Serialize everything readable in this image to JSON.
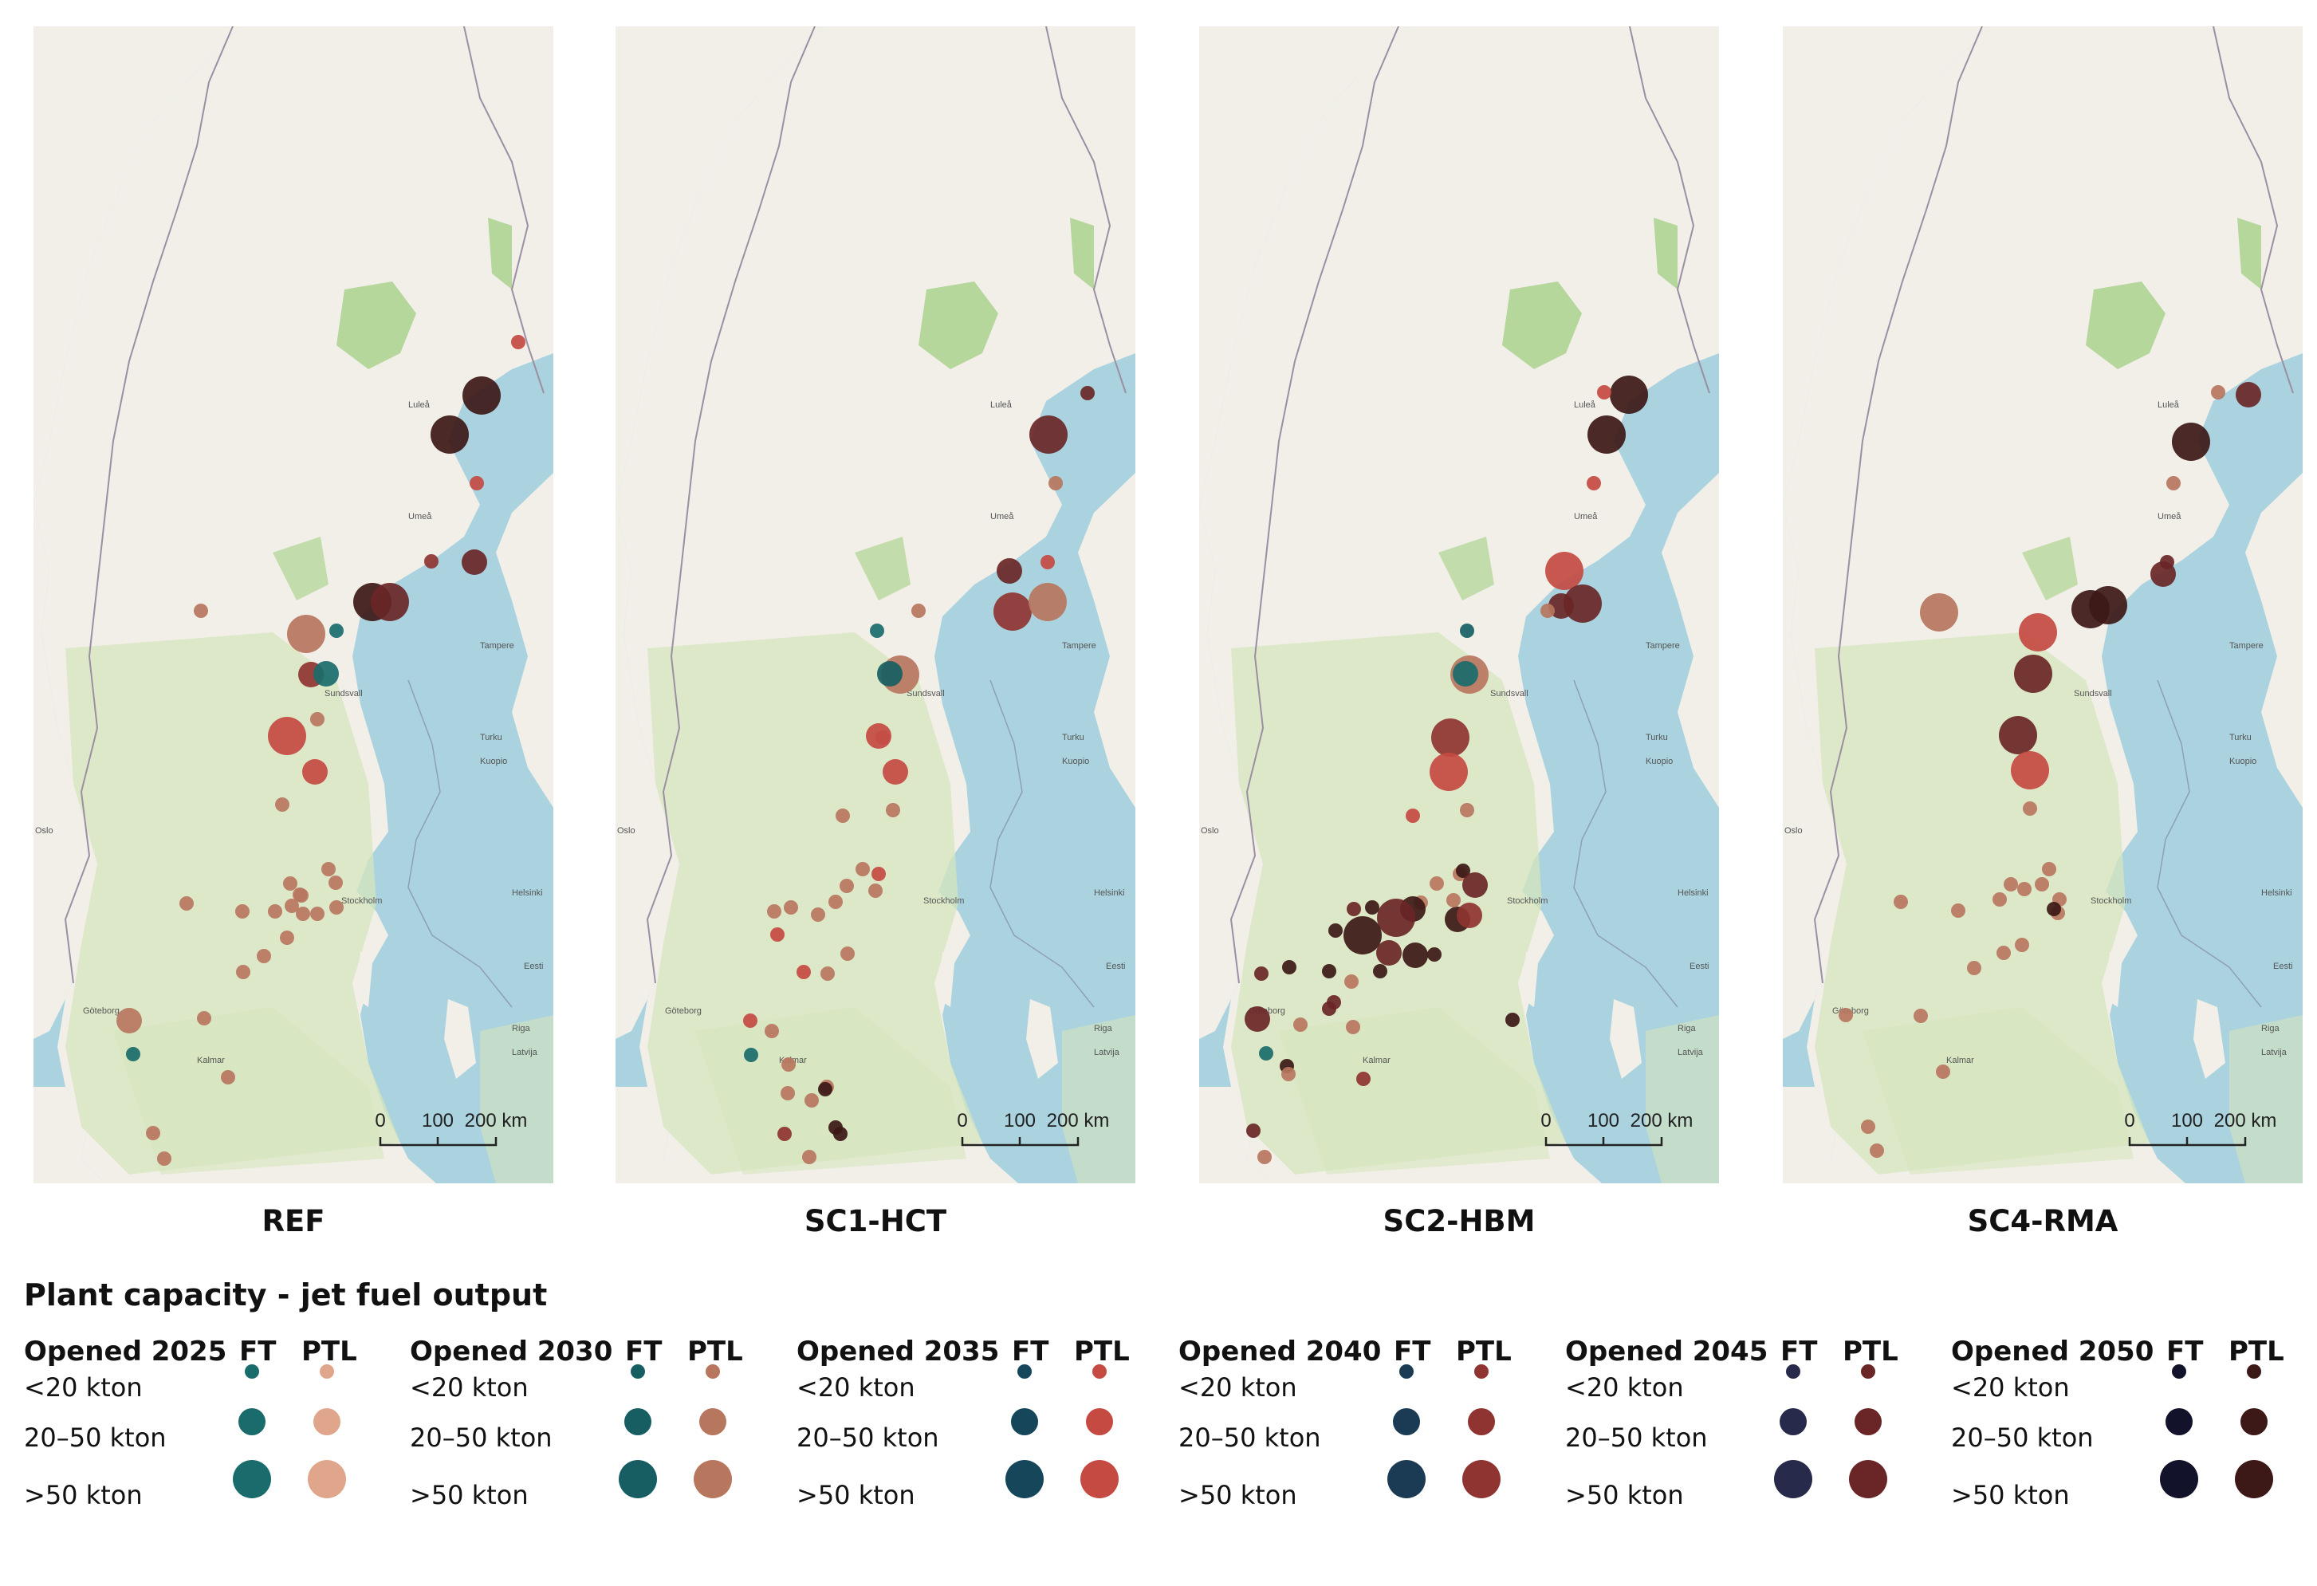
{
  "maps": [
    {
      "title": "REF",
      "plants": [
        [
          "ptl",
          2050,
          3,
          562,
          463
        ],
        [
          "ptl",
          2035,
          1,
          608,
          396
        ],
        [
          "ptl",
          2050,
          3,
          522,
          512
        ],
        [
          "ptl",
          2035,
          1,
          556,
          573
        ],
        [
          "ptl",
          2045,
          2,
          553,
          672
        ],
        [
          "ptl",
          2040,
          1,
          499,
          671
        ],
        [
          "ptl",
          2050,
          3,
          425,
          722
        ],
        [
          "ptl",
          2045,
          3,
          447,
          722
        ],
        [
          "ptl",
          2030,
          1,
          210,
          733
        ],
        [
          "ptl",
          2030,
          3,
          342,
          762
        ],
        [
          "ptl",
          2040,
          2,
          348,
          813
        ],
        [
          "ptl",
          2030,
          1,
          356,
          869
        ],
        [
          "ptl",
          2035,
          3,
          318,
          890
        ],
        [
          "ptl",
          2035,
          2,
          353,
          935
        ],
        [
          "ptl",
          2030,
          1,
          312,
          976
        ],
        [
          "ptl",
          2030,
          1,
          322,
          1075
        ],
        [
          "ptl",
          2030,
          1,
          336,
          1090
        ],
        [
          "ptl",
          2030,
          1,
          324,
          1103
        ],
        [
          "ptl",
          2030,
          1,
          338,
          1113
        ],
        [
          "ptl",
          2030,
          1,
          356,
          1113
        ],
        [
          "ptl",
          2030,
          1,
          380,
          1105
        ],
        [
          "ptl",
          2030,
          1,
          379,
          1074
        ],
        [
          "ptl",
          2030,
          1,
          370,
          1057
        ],
        [
          "ptl",
          2030,
          1,
          334,
          1089
        ],
        [
          "ptl",
          2030,
          1,
          303,
          1110
        ],
        [
          "ptl",
          2030,
          1,
          262,
          1110
        ],
        [
          "ptl",
          2030,
          1,
          192,
          1100
        ],
        [
          "ptl",
          2030,
          1,
          318,
          1143
        ],
        [
          "ptl",
          2030,
          1,
          289,
          1166
        ],
        [
          "ptl",
          2030,
          1,
          263,
          1186
        ],
        [
          "ptl",
          2030,
          1,
          214,
          1244
        ],
        [
          "ptl",
          2030,
          2,
          120,
          1247
        ],
        [
          "ptl",
          2030,
          1,
          244,
          1318
        ],
        [
          "ptl",
          2030,
          1,
          150,
          1388
        ],
        [
          "ptl",
          2030,
          1,
          164,
          1420
        ],
        [
          "ft",
          2025,
          2,
          367,
          812
        ],
        [
          "ft",
          2025,
          1,
          380,
          758
        ],
        [
          "ft",
          2025,
          1,
          125,
          1289
        ]
      ]
    },
    {
      "title": "SC1-HCT",
      "plants": [
        [
          "ptl",
          2045,
          3,
          543,
          512
        ],
        [
          "ptl",
          2045,
          1,
          592,
          460
        ],
        [
          "ptl",
          2030,
          1,
          552,
          573
        ],
        [
          "ptl",
          2035,
          1,
          542,
          672
        ],
        [
          "ptl",
          2045,
          2,
          494,
          683
        ],
        [
          "ptl",
          2040,
          3,
          498,
          734
        ],
        [
          "ptl",
          2030,
          3,
          542,
          722
        ],
        [
          "ptl",
          2030,
          1,
          380,
          733
        ],
        [
          "ptl",
          2030,
          3,
          357,
          813
        ],
        [
          "ptl",
          2030,
          1,
          335,
          892
        ],
        [
          "ptl",
          2035,
          2,
          330,
          890
        ],
        [
          "ptl",
          2035,
          2,
          351,
          935
        ],
        [
          "ptl",
          2030,
          1,
          348,
          983
        ],
        [
          "ptl",
          2030,
          1,
          285,
          990
        ],
        [
          "ptl",
          2030,
          1,
          310,
          1057
        ],
        [
          "ptl",
          2035,
          1,
          330,
          1063
        ],
        [
          "ptl",
          2030,
          1,
          326,
          1084
        ],
        [
          "ptl",
          2030,
          1,
          290,
          1078
        ],
        [
          "ptl",
          2030,
          1,
          276,
          1098
        ],
        [
          "ptl",
          2030,
          1,
          254,
          1114
        ],
        [
          "ptl",
          2030,
          1,
          199,
          1110
        ],
        [
          "ptl",
          2030,
          1,
          220,
          1105
        ],
        [
          "ptl",
          2035,
          1,
          203,
          1139
        ],
        [
          "ptl",
          2030,
          1,
          291,
          1163
        ],
        [
          "ptl",
          2030,
          1,
          266,
          1188
        ],
        [
          "ptl",
          2035,
          1,
          236,
          1186
        ],
        [
          "ptl",
          2035,
          1,
          169,
          1247
        ],
        [
          "ptl",
          2030,
          1,
          196,
          1260
        ],
        [
          "ptl",
          2030,
          1,
          217,
          1302
        ],
        [
          "ptl",
          2030,
          1,
          265,
          1330
        ],
        [
          "ptl",
          2030,
          1,
          216,
          1338
        ],
        [
          "ptl",
          2030,
          1,
          246,
          1347
        ],
        [
          "ptl",
          2040,
          1,
          212,
          1389
        ],
        [
          "ptl",
          2050,
          1,
          282,
          1389
        ],
        [
          "ptl",
          2030,
          1,
          243,
          1418
        ],
        [
          "ptl",
          2050,
          1,
          263,
          1333
        ],
        [
          "ptl",
          2050,
          1,
          276,
          1381
        ],
        [
          "ft",
          2030,
          2,
          344,
          812
        ],
        [
          "ft",
          2025,
          1,
          328,
          758
        ],
        [
          "ft",
          2025,
          1,
          170,
          1290
        ]
      ]
    },
    {
      "title": "SC2-HBM",
      "plants": [
        [
          "ptl",
          2050,
          3,
          539,
          462
        ],
        [
          "ptl",
          2035,
          1,
          508,
          459
        ],
        [
          "ptl",
          2050,
          3,
          511,
          512
        ],
        [
          "ptl",
          2035,
          1,
          495,
          573
        ],
        [
          "ptl",
          2035,
          3,
          458,
          683
        ],
        [
          "ptl",
          2045,
          3,
          481,
          724
        ],
        [
          "ptl",
          2045,
          2,
          454,
          727
        ],
        [
          "ptl",
          2030,
          1,
          437,
          733
        ],
        [
          "ptl",
          2030,
          3,
          339,
          813
        ],
        [
          "ptl",
          2040,
          3,
          315,
          892
        ],
        [
          "ptl",
          2035,
          3,
          313,
          935
        ],
        [
          "ptl",
          2030,
          1,
          336,
          983
        ],
        [
          "ptl",
          2035,
          1,
          268,
          990
        ],
        [
          "ptl",
          2030,
          1,
          327,
          1063
        ],
        [
          "ptl",
          2030,
          1,
          298,
          1075
        ],
        [
          "ptl",
          2030,
          1,
          278,
          1099
        ],
        [
          "ptl",
          2050,
          1,
          331,
          1059
        ],
        [
          "ptl",
          2045,
          2,
          346,
          1077
        ],
        [
          "ptl",
          2050,
          2,
          324,
          1120
        ],
        [
          "ptl",
          2030,
          1,
          319,
          1096
        ],
        [
          "ptl",
          2040,
          2,
          339,
          1115
        ],
        [
          "ptl",
          2050,
          2,
          268,
          1107
        ],
        [
          "ptl",
          2045,
          3,
          247,
          1118
        ],
        [
          "ptl",
          2045,
          1,
          194,
          1107
        ],
        [
          "ptl",
          2050,
          1,
          171,
          1134
        ],
        [
          "ptl",
          2050,
          1,
          217,
          1105
        ],
        [
          "ptl",
          2045,
          2,
          238,
          1162
        ],
        [
          "ptl",
          2050,
          2,
          271,
          1165
        ],
        [
          "ptl",
          2050,
          3,
          205,
          1140
        ],
        [
          "ptl",
          2050,
          1,
          113,
          1180
        ],
        [
          "ptl",
          2050,
          1,
          163,
          1185
        ],
        [
          "ptl",
          2050,
          1,
          227,
          1185
        ],
        [
          "ptl",
          2045,
          1,
          163,
          1232
        ],
        [
          "ptl",
          2050,
          1,
          295,
          1164
        ],
        [
          "ptl",
          2030,
          1,
          191,
          1198
        ],
        [
          "ptl",
          2045,
          1,
          169,
          1224
        ],
        [
          "ptl",
          2045,
          1,
          78,
          1188
        ],
        [
          "ptl",
          2045,
          2,
          73,
          1245
        ],
        [
          "ptl",
          2030,
          1,
          127,
          1252
        ],
        [
          "ptl",
          2030,
          1,
          193,
          1255
        ],
        [
          "ptl",
          2040,
          1,
          206,
          1320
        ],
        [
          "ptl",
          2050,
          1,
          110,
          1304
        ],
        [
          "ptl",
          2030,
          1,
          112,
          1314
        ],
        [
          "ptl",
          2050,
          1,
          393,
          1246
        ],
        [
          "ptl",
          2045,
          1,
          68,
          1385
        ],
        [
          "ptl",
          2030,
          1,
          82,
          1418
        ],
        [
          "ft",
          2025,
          2,
          334,
          812
        ],
        [
          "ft",
          2030,
          1,
          336,
          758
        ],
        [
          "ft",
          2025,
          1,
          84,
          1288
        ]
      ]
    },
    {
      "title": "SC4-RMA",
      "plants": [
        [
          "ptl",
          2045,
          2,
          584,
          462
        ],
        [
          "ptl",
          2030,
          1,
          546,
          459
        ],
        [
          "ptl",
          2050,
          3,
          512,
          521
        ],
        [
          "ptl",
          2030,
          1,
          490,
          573
        ],
        [
          "ptl",
          2045,
          1,
          482,
          672
        ],
        [
          "ptl",
          2045,
          2,
          477,
          687
        ],
        [
          "ptl",
          2050,
          3,
          408,
          726
        ],
        [
          "ptl",
          2050,
          3,
          386,
          731
        ],
        [
          "ptl",
          2030,
          3,
          196,
          735
        ],
        [
          "ptl",
          2035,
          3,
          320,
          760
        ],
        [
          "ptl",
          2045,
          3,
          314,
          812
        ],
        [
          "ptl",
          2045,
          3,
          295,
          889
        ],
        [
          "ptl",
          2035,
          3,
          310,
          933
        ],
        [
          "ptl",
          2030,
          1,
          310,
          981
        ],
        [
          "ptl",
          2030,
          1,
          334,
          1057
        ],
        [
          "ptl",
          2030,
          1,
          325,
          1076
        ],
        [
          "ptl",
          2030,
          1,
          286,
          1076
        ],
        [
          "ptl",
          2030,
          1,
          303,
          1082
        ],
        [
          "ptl",
          2030,
          1,
          272,
          1095
        ],
        [
          "ptl",
          2030,
          1,
          220,
          1109
        ],
        [
          "ptl",
          2030,
          1,
          148,
          1098
        ],
        [
          "ptl",
          2030,
          1,
          347,
          1095
        ],
        [
          "ptl",
          2030,
          1,
          345,
          1112
        ],
        [
          "ptl",
          2030,
          1,
          300,
          1152
        ],
        [
          "ptl",
          2030,
          1,
          277,
          1162
        ],
        [
          "ptl",
          2030,
          1,
          240,
          1181
        ],
        [
          "ptl",
          2030,
          1,
          173,
          1241
        ],
        [
          "ptl",
          2030,
          1,
          79,
          1240
        ],
        [
          "ptl",
          2030,
          1,
          201,
          1311
        ],
        [
          "ptl",
          2030,
          1,
          107,
          1380
        ],
        [
          "ptl",
          2030,
          1,
          118,
          1410
        ],
        [
          "ptl",
          2050,
          1,
          340,
          1107
        ]
      ]
    }
  ],
  "scale_bar": {
    "labels": [
      "0",
      "100",
      "200 km"
    ]
  },
  "place_labels": [
    "Oslo",
    "Turku",
    "Tampere",
    "Kuopio",
    "Göteborg",
    "Luleå",
    "Riga",
    "Latvija",
    "Eesti",
    "Umeå",
    "Sundsvall",
    "Helsinki",
    "Kalmar",
    "Stockholm"
  ],
  "legend": {
    "title": "Plant capacity - jet fuel output",
    "ft_label": "FT",
    "ptl_label": "PTL",
    "size_labels": [
      "<20 kton",
      "20–50 kton",
      ">50 kton"
    ],
    "groups": [
      {
        "year_label": "Opened 2025",
        "ft_color": "#1a6b6b",
        "ptl_color": "#dfa68b"
      },
      {
        "year_label": "Opened 2030",
        "ft_color": "#175e62",
        "ptl_color": "#b7765e"
      },
      {
        "year_label": "Opened 2035",
        "ft_color": "#16465a",
        "ptl_color": "#c44a42"
      },
      {
        "year_label": "Opened 2040",
        "ft_color": "#1b3b54",
        "ptl_color": "#8f3431"
      },
      {
        "year_label": "Opened 2045",
        "ft_color": "#282a4c",
        "ptl_color": "#6a2626"
      },
      {
        "year_label": "Opened 2050",
        "ft_color": "#12122a",
        "ptl_color": "#3c1816"
      }
    ]
  },
  "colors": {
    "sea": "#aad3df",
    "land": "#f2efe9",
    "forest": "#d5e5bd",
    "park": "#b5d79c",
    "border": "#9a8fa3"
  }
}
